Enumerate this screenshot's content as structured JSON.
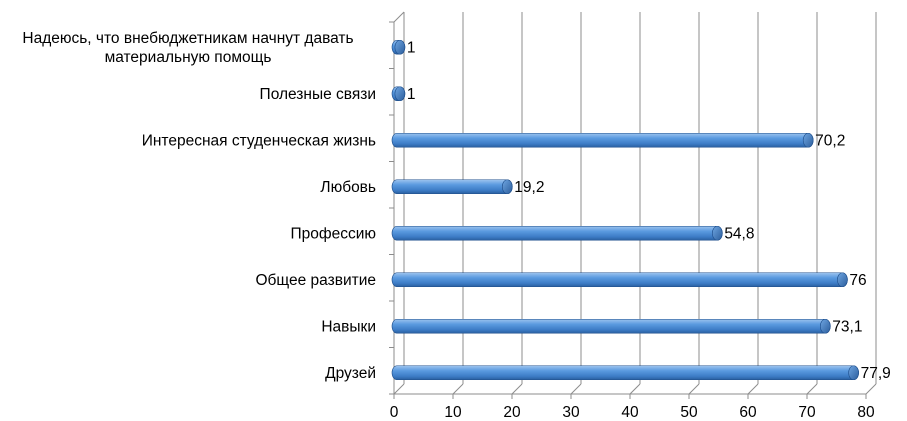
{
  "chart_data": {
    "type": "bar",
    "orientation": "horizontal",
    "style": "3d-cylinder",
    "categories": [
      [
        "Надеюсь, что внебюджетникам начнут давать",
        "материальную помощь"
      ],
      [
        "Полезные связи"
      ],
      [
        "Интересная студенческая жизнь"
      ],
      [
        "Любовь"
      ],
      [
        "Профессию"
      ],
      [
        "Общее развитие"
      ],
      [
        "Навыки"
      ],
      [
        "Друзей"
      ]
    ],
    "values": [
      1,
      1,
      70.2,
      19.2,
      54.8,
      76,
      73.1,
      77.9
    ],
    "value_labels": [
      "1",
      "1",
      "70,2",
      "19,2",
      "54,8",
      "76",
      "73,1",
      "77,9"
    ],
    "xlim": [
      0,
      80
    ],
    "xticks": [
      "0",
      "10",
      "20",
      "30",
      "40",
      "50",
      "60",
      "70",
      "80"
    ],
    "grid": "vertical",
    "legend": "none",
    "title": "",
    "xlabel": "",
    "ylabel": "",
    "colors": {
      "bar": "#4a8ad3",
      "bar_dark": "#1f4f8c",
      "bar_light": "#a9ccf2",
      "grid": "#8c8c8c"
    }
  }
}
